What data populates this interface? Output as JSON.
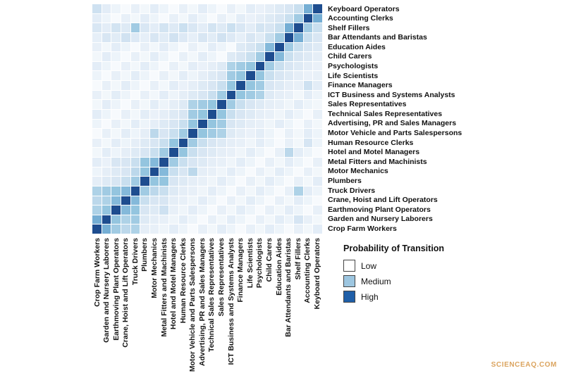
{
  "chart_data": {
    "type": "heatmap",
    "title": "",
    "x_categories": [
      "Crop Farm Workers",
      "Garden and Nursery Laborers",
      "Earthmoving Plant Operators",
      "Crane, Hoist and Lift Operators",
      "Truck Drivers",
      "Plumbers",
      "Motor Mechanics",
      "Metal Fitters and Machinists",
      "Hotel and Motel Managers",
      "Human Resource Clerks",
      "Motor Vehicle and Parts Salespersons",
      "Advertising, PR and Sales Managers",
      "Technical Sales Representatives",
      "Sales Representatives",
      "ICT Business and Systems Analysts",
      "Finance Managers",
      "Life Scientists",
      "Psychologists",
      "Child Carers",
      "Education Aides",
      "Bar Attendants and Baristas",
      "Shelf Fillers",
      "Accounting Clerks",
      "Keyboard Operators"
    ],
    "y_categories": [
      "Keyboard Operators",
      "Accounting Clerks",
      "Shelf Fillers",
      "Bar Attendants and Baristas",
      "Education Aides",
      "Child Carers",
      "Psychologists",
      "Life Scientists",
      "Finance Managers",
      "ICT Business and Systems Analysts",
      "Sales Representatives",
      "Technical Sales Representatives",
      "Advertising, PR and Sales Managers",
      "Motor Vehicle and Parts Salespersons",
      "Human Resource Clerks",
      "Hotel and Motel Managers",
      "Metal Fitters and Machinists",
      "Motor Mechanics",
      "Plumbers",
      "Truck Drivers",
      "Crane, Hoist and Lift Operators",
      "Earthmoving Plant Operators",
      "Garden and Nursery Laborers",
      "Crop Farm Workers"
    ],
    "value_range": [
      0,
      1
    ],
    "values": [
      [
        0.28,
        0.17,
        0.11,
        0.05,
        0.14,
        0.08,
        0.17,
        0.11,
        0.05,
        0.14,
        0.08,
        0.17,
        0.11,
        0.05,
        0.14,
        0.08,
        0.17,
        0.13,
        0.16,
        0.2,
        0.24,
        0.3,
        0.6,
        1.0
      ],
      [
        0.17,
        0.11,
        0.05,
        0.14,
        0.08,
        0.17,
        0.11,
        0.05,
        0.14,
        0.08,
        0.17,
        0.11,
        0.05,
        0.14,
        0.08,
        0.17,
        0.13,
        0.16,
        0.2,
        0.24,
        0.3,
        0.45,
        1.0,
        0.6
      ],
      [
        0.23,
        0.17,
        0.26,
        0.2,
        0.45,
        0.23,
        0.17,
        0.26,
        0.2,
        0.29,
        0.23,
        0.17,
        0.26,
        0.2,
        0.29,
        0.23,
        0.17,
        0.26,
        0.24,
        0.3,
        0.6,
        1.0,
        0.45,
        0.3
      ],
      [
        0.15,
        0.24,
        0.18,
        0.27,
        0.21,
        0.15,
        0.24,
        0.18,
        0.27,
        0.21,
        0.15,
        0.24,
        0.18,
        0.27,
        0.21,
        0.15,
        0.24,
        0.18,
        0.3,
        0.45,
        1.0,
        0.6,
        0.3,
        0.24
      ],
      [
        0.14,
        0.08,
        0.17,
        0.11,
        0.05,
        0.14,
        0.08,
        0.17,
        0.11,
        0.05,
        0.14,
        0.08,
        0.17,
        0.11,
        0.05,
        0.2,
        0.24,
        0.3,
        0.55,
        1.0,
        0.45,
        0.3,
        0.24,
        0.2
      ],
      [
        0.08,
        0.17,
        0.11,
        0.05,
        0.14,
        0.08,
        0.17,
        0.11,
        0.05,
        0.14,
        0.08,
        0.17,
        0.11,
        0.05,
        0.2,
        0.24,
        0.3,
        0.45,
        1.0,
        0.55,
        0.3,
        0.24,
        0.2,
        0.16
      ],
      [
        0.17,
        0.11,
        0.05,
        0.14,
        0.08,
        0.17,
        0.11,
        0.05,
        0.14,
        0.08,
        0.17,
        0.13,
        0.16,
        0.2,
        0.4,
        0.45,
        0.5,
        1.0,
        0.45,
        0.3,
        0.24,
        0.2,
        0.16,
        0.13
      ],
      [
        0.11,
        0.05,
        0.14,
        0.08,
        0.17,
        0.11,
        0.05,
        0.14,
        0.08,
        0.17,
        0.11,
        0.16,
        0.2,
        0.24,
        0.45,
        0.5,
        1.0,
        0.5,
        0.3,
        0.24,
        0.2,
        0.16,
        0.13,
        0.14
      ],
      [
        0.05,
        0.14,
        0.08,
        0.17,
        0.11,
        0.05,
        0.14,
        0.08,
        0.17,
        0.13,
        0.16,
        0.2,
        0.24,
        0.3,
        0.5,
        1.0,
        0.5,
        0.45,
        0.24,
        0.2,
        0.16,
        0.14,
        0.28,
        0.17
      ],
      [
        0.14,
        0.08,
        0.17,
        0.11,
        0.05,
        0.14,
        0.08,
        0.17,
        0.11,
        0.16,
        0.2,
        0.24,
        0.3,
        0.45,
        1.0,
        0.5,
        0.45,
        0.4,
        0.2,
        0.16,
        0.14,
        0.08,
        0.17,
        0.11
      ],
      [
        0.08,
        0.17,
        0.11,
        0.05,
        0.14,
        0.08,
        0.17,
        0.11,
        0.16,
        0.2,
        0.4,
        0.45,
        0.5,
        1.0,
        0.45,
        0.3,
        0.24,
        0.2,
        0.16,
        0.14,
        0.1,
        0.17,
        0.11,
        0.08
      ],
      [
        0.17,
        0.11,
        0.05,
        0.14,
        0.08,
        0.17,
        0.13,
        0.16,
        0.2,
        0.24,
        0.45,
        0.5,
        1.0,
        0.5,
        0.3,
        0.24,
        0.2,
        0.16,
        0.14,
        0.1,
        0.17,
        0.11,
        0.05,
        0.14
      ],
      [
        0.11,
        0.05,
        0.14,
        0.08,
        0.17,
        0.11,
        0.16,
        0.2,
        0.24,
        0.3,
        0.5,
        1.0,
        0.5,
        0.45,
        0.24,
        0.2,
        0.16,
        0.14,
        0.1,
        0.17,
        0.11,
        0.05,
        0.14,
        0.08
      ],
      [
        0.05,
        0.14,
        0.08,
        0.17,
        0.11,
        0.16,
        0.35,
        0.24,
        0.3,
        0.45,
        1.0,
        0.5,
        0.45,
        0.4,
        0.2,
        0.16,
        0.13,
        0.17,
        0.11,
        0.05,
        0.14,
        0.08,
        0.17,
        0.11
      ],
      [
        0.14,
        0.08,
        0.17,
        0.11,
        0.16,
        0.2,
        0.24,
        0.3,
        0.5,
        1.0,
        0.45,
        0.3,
        0.24,
        0.2,
        0.16,
        0.14,
        0.1,
        0.17,
        0.11,
        0.05,
        0.14,
        0.08,
        0.25,
        0.11
      ],
      [
        0.08,
        0.17,
        0.11,
        0.16,
        0.2,
        0.24,
        0.3,
        0.45,
        1.0,
        0.5,
        0.3,
        0.24,
        0.2,
        0.16,
        0.14,
        0.1,
        0.17,
        0.11,
        0.05,
        0.14,
        0.35,
        0.17,
        0.11,
        0.05
      ],
      [
        0.17,
        0.13,
        0.24,
        0.24,
        0.3,
        0.5,
        0.55,
        1.0,
        0.45,
        0.3,
        0.24,
        0.2,
        0.16,
        0.14,
        0.1,
        0.17,
        0.11,
        0.05,
        0.14,
        0.08,
        0.17,
        0.11,
        0.05,
        0.14
      ],
      [
        0.11,
        0.16,
        0.2,
        0.24,
        0.35,
        0.5,
        1.0,
        0.55,
        0.3,
        0.24,
        0.35,
        0.16,
        0.14,
        0.1,
        0.17,
        0.11,
        0.05,
        0.14,
        0.08,
        0.17,
        0.11,
        0.05,
        0.14,
        0.08
      ],
      [
        0.16,
        0.2,
        0.24,
        0.3,
        0.45,
        1.0,
        0.5,
        0.5,
        0.24,
        0.2,
        0.16,
        0.14,
        0.1,
        0.17,
        0.11,
        0.05,
        0.14,
        0.08,
        0.17,
        0.11,
        0.05,
        0.14,
        0.08,
        0.17
      ],
      [
        0.4,
        0.45,
        0.5,
        0.55,
        1.0,
        0.45,
        0.35,
        0.3,
        0.2,
        0.16,
        0.14,
        0.1,
        0.17,
        0.11,
        0.05,
        0.14,
        0.08,
        0.17,
        0.11,
        0.05,
        0.14,
        0.4,
        0.17,
        0.11
      ],
      [
        0.35,
        0.4,
        0.55,
        1.0,
        0.55,
        0.3,
        0.24,
        0.24,
        0.16,
        0.14,
        0.1,
        0.17,
        0.11,
        0.05,
        0.14,
        0.08,
        0.17,
        0.11,
        0.05,
        0.14,
        0.08,
        0.17,
        0.11,
        0.05
      ],
      [
        0.4,
        0.5,
        1.0,
        0.55,
        0.5,
        0.24,
        0.2,
        0.28,
        0.14,
        0.1,
        0.17,
        0.11,
        0.05,
        0.14,
        0.08,
        0.17,
        0.11,
        0.05,
        0.14,
        0.08,
        0.17,
        0.11,
        0.05,
        0.14
      ],
      [
        0.6,
        1.0,
        0.5,
        0.4,
        0.45,
        0.2,
        0.16,
        0.14,
        0.1,
        0.17,
        0.11,
        0.05,
        0.14,
        0.08,
        0.17,
        0.11,
        0.05,
        0.14,
        0.08,
        0.17,
        0.11,
        0.25,
        0.14,
        0.08
      ],
      [
        1.0,
        0.6,
        0.45,
        0.35,
        0.4,
        0.16,
        0.14,
        0.1,
        0.17,
        0.11,
        0.05,
        0.14,
        0.08,
        0.17,
        0.11,
        0.05,
        0.14,
        0.08,
        0.17,
        0.11,
        0.05,
        0.14,
        0.08,
        0.17
      ]
    ],
    "colormap_stops": [
      [
        0,
        "#ffffff"
      ],
      [
        0.25,
        "#d6e5f3"
      ],
      [
        0.5,
        "#94c5df"
      ],
      [
        0.75,
        "#468bc4"
      ],
      [
        1,
        "#1e4d8f"
      ]
    ],
    "grid": false,
    "legend": {
      "title": "Probability of Transition",
      "position": "bottom-right",
      "entries": [
        {
          "label": "Low",
          "color": "#ffffff"
        },
        {
          "label": "Medium",
          "color": "#9dc6e0"
        },
        {
          "label": "High",
          "color": "#1f5fa8"
        }
      ]
    }
  },
  "watermark": "SCIENCEAQ.COM"
}
